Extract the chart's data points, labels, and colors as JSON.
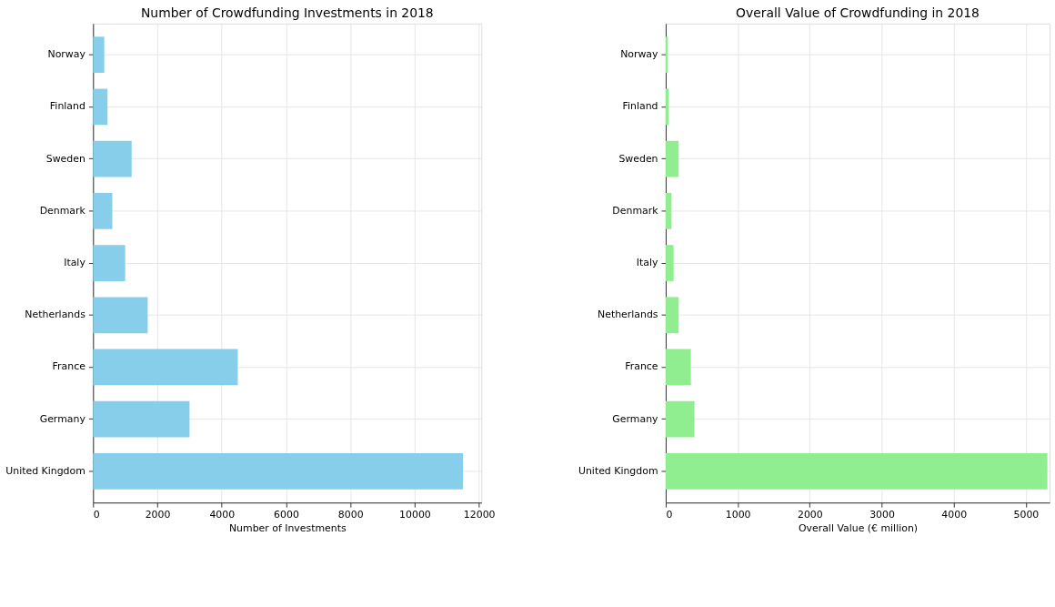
{
  "chart_data": [
    {
      "type": "bar",
      "orientation": "horizontal",
      "title": "Number of Crowdfunding Investments in 2018",
      "xlabel": "Number of Investments",
      "categories": [
        "Norway",
        "Finland",
        "Sweden",
        "Denmark",
        "Italy",
        "Netherlands",
        "France",
        "Germany",
        "United Kingdom"
      ],
      "values": [
        350,
        450,
        1200,
        600,
        1000,
        1700,
        4500,
        3000,
        11500
      ],
      "color": "#87ceeb",
      "xlim": [
        0,
        12075
      ],
      "xticks": [
        0,
        2000,
        4000,
        6000,
        8000,
        10000,
        12000
      ],
      "grid": true
    },
    {
      "type": "bar",
      "orientation": "horizontal",
      "title": "Overall Value of Crowdfunding in 2018",
      "xlabel": "Overall Value (€ million)",
      "categories": [
        "Norway",
        "Finland",
        "Sweden",
        "Denmark",
        "Italy",
        "Netherlands",
        "France",
        "Germany",
        "United Kingdom"
      ],
      "values": [
        30,
        40,
        180,
        80,
        110,
        180,
        350,
        400,
        5300
      ],
      "color": "#90ee90",
      "xlim": [
        0,
        5330
      ],
      "xticks": [
        0,
        1000,
        2000,
        3000,
        4000,
        5000
      ],
      "grid": true
    }
  ]
}
